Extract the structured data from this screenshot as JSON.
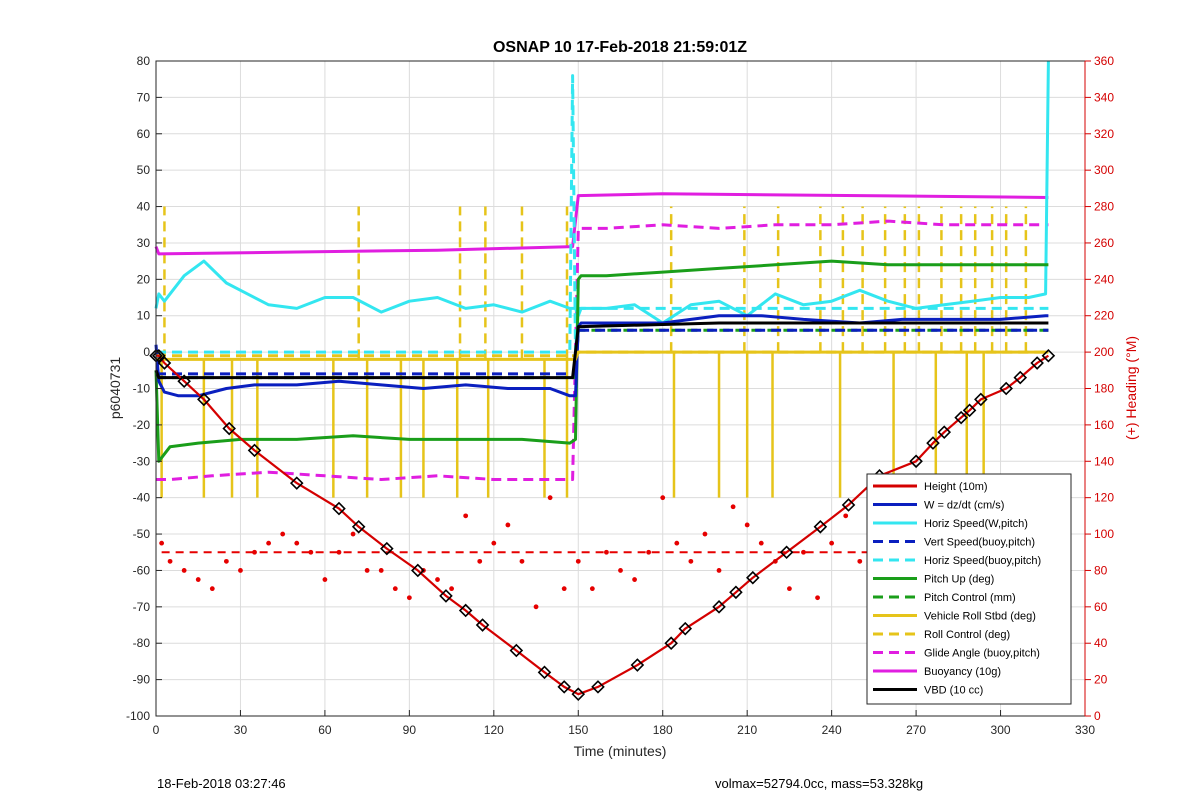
{
  "footer": {
    "left": "18-Feb-2018 03:27:46",
    "right": "volmax=52794.0cc, mass=53.328kg"
  },
  "chart_data": {
    "type": "line",
    "title": "OSNAP 10 17-Feb-2018 21:59:01Z",
    "xlabel": "Time (minutes)",
    "ylabel": "p6040731",
    "y2label": "(+) Heading (°M)",
    "xlim": [
      0,
      330
    ],
    "ylim": [
      -100,
      80
    ],
    "y2lim": [
      0,
      360
    ],
    "xticks": [
      0,
      30,
      60,
      90,
      120,
      150,
      180,
      210,
      240,
      270,
      300,
      330
    ],
    "yticks": [
      80,
      70,
      60,
      50,
      40,
      30,
      20,
      10,
      0,
      -10,
      -20,
      -30,
      -40,
      -50,
      -60,
      -70,
      -80,
      -90,
      -100
    ],
    "y2ticks": [
      360,
      340,
      320,
      300,
      280,
      260,
      240,
      220,
      200,
      180,
      160,
      140,
      120,
      100,
      80,
      60,
      40,
      20,
      0
    ],
    "grid": true,
    "legend_position": "bottom-right",
    "colors": {
      "height": "#d40000",
      "w": "#0a1fbf",
      "horiz": "#33e6f0",
      "pitch": "#1a9e1a",
      "roll": "#e6c41a",
      "glide": "#e01ee0",
      "buoy": "#e01ee0",
      "vbd": "#000000",
      "heading": "#e60000"
    },
    "series": [
      {
        "name": "Height (10m)",
        "key": "height",
        "style": "solid-markers",
        "x": [
          0,
          1,
          3,
          10,
          17,
          26,
          35,
          50,
          65,
          72,
          82,
          93,
          103,
          110,
          116,
          128,
          138,
          145,
          150,
          157,
          171,
          183,
          188,
          200,
          206,
          212,
          224,
          236,
          246,
          257,
          270,
          276,
          280,
          286,
          289,
          293,
          302,
          307,
          313,
          317
        ],
        "y": [
          -1,
          -1,
          -3,
          -8,
          -13,
          -21,
          -27,
          -36,
          -43,
          -48,
          -54,
          -60,
          -67,
          -71,
          -75,
          -82,
          -88,
          -92,
          -94,
          -92,
          -86,
          -80,
          -76,
          -70,
          -66,
          -62,
          -55,
          -48,
          -42,
          -34,
          -30,
          -25,
          -22,
          -18,
          -16,
          -13,
          -10,
          -7,
          -3,
          -1
        ]
      },
      {
        "name": "W = dz/dt (cm/s)",
        "key": "w",
        "style": "solid",
        "x": [
          0,
          1,
          3,
          8,
          15,
          25,
          35,
          50,
          65,
          80,
          95,
          110,
          125,
          140,
          147,
          149,
          150,
          151,
          160,
          180,
          200,
          215,
          230,
          250,
          265,
          280,
          300,
          316,
          317
        ],
        "y": [
          2,
          -8,
          -11,
          -12,
          -12,
          -10,
          -9,
          -9,
          -8,
          -9,
          -10,
          -9,
          -10,
          -10,
          -12,
          -12,
          7,
          8,
          8,
          8,
          10,
          10,
          9,
          8,
          9,
          9,
          9,
          10,
          10
        ]
      },
      {
        "name": "Horiz Speed(W,pitch)",
        "key": "horiz",
        "style": "solid",
        "x": [
          0,
          1,
          3,
          10,
          17,
          25,
          30,
          40,
          50,
          60,
          70,
          80,
          90,
          100,
          110,
          120,
          130,
          140,
          147,
          149,
          150,
          151,
          160,
          170,
          180,
          190,
          200,
          210,
          220,
          230,
          240,
          250,
          260,
          270,
          280,
          290,
          300,
          310,
          316,
          317
        ],
        "y": [
          12,
          16,
          14,
          21,
          25,
          19,
          17,
          13,
          12,
          15,
          15,
          11,
          14,
          15,
          12,
          13,
          11,
          14,
          12,
          12,
          10,
          12,
          12,
          13,
          8,
          13,
          14,
          10,
          16,
          13,
          14,
          17,
          14,
          12,
          13,
          14,
          15,
          15,
          16,
          80
        ]
      },
      {
        "name": "Vert Speed(buoy,pitch)",
        "key": "w",
        "style": "dashed",
        "x": [
          0,
          148,
          149,
          150,
          317
        ],
        "y": [
          -6,
          -6,
          -6,
          6,
          6
        ]
      },
      {
        "name": "Horiz Speed(buoy,pitch)",
        "key": "horiz",
        "style": "dashed",
        "x": [
          0,
          147,
          148,
          149,
          150,
          317
        ],
        "y": [
          0,
          0,
          76,
          0,
          12,
          12
        ]
      },
      {
        "name": "Pitch Up (deg)",
        "key": "pitch",
        "style": "solid",
        "x": [
          0,
          1,
          5,
          15,
          30,
          50,
          70,
          90,
          110,
          130,
          147,
          149,
          150,
          151,
          160,
          180,
          200,
          220,
          240,
          260,
          280,
          300,
          317
        ],
        "y": [
          -5,
          -30,
          -26,
          -25,
          -24,
          -24,
          -23,
          -24,
          -24,
          -24,
          -25,
          -24,
          20,
          21,
          21,
          22,
          23,
          24,
          25,
          24,
          24,
          24,
          24
        ]
      },
      {
        "name": "Pitch Control (mm)",
        "key": "pitch",
        "style": "dashed",
        "x": [
          0,
          148,
          149,
          150,
          317
        ],
        "y": [
          -7,
          -7,
          -7,
          6,
          6
        ]
      },
      {
        "name": "Vehicle Roll Stbd (deg)",
        "key": "roll",
        "style": "solid",
        "x": [
          0,
          149,
          150,
          317
        ],
        "y": [
          -2,
          -2,
          0,
          0
        ]
      },
      {
        "name": "Roll Control (deg)",
        "key": "roll",
        "style": "dashed",
        "x": [
          0,
          149,
          150,
          317
        ],
        "y": [
          -1,
          -1,
          0,
          0
        ]
      },
      {
        "name": "Glide Angle (buoy,pitch)",
        "key": "glide",
        "style": "dashed",
        "x": [
          0,
          5,
          20,
          40,
          60,
          80,
          100,
          120,
          140,
          148,
          150,
          160,
          180,
          200,
          220,
          240,
          260,
          280,
          300,
          317
        ],
        "y": [
          -35,
          -35,
          -34,
          -33,
          -34,
          -35,
          -34,
          -35,
          -35,
          -35,
          34,
          34,
          35,
          34,
          35,
          35,
          36,
          35,
          35,
          35
        ]
      },
      {
        "name": "Buoyancy (10g)",
        "key": "buoy",
        "style": "solid",
        "x": [
          0,
          1,
          50,
          100,
          148,
          150,
          180,
          250,
          317
        ],
        "y": [
          29,
          27,
          27.5,
          28,
          29,
          43,
          43.5,
          43,
          42.5
        ]
      },
      {
        "name": "VBD (10 cc)",
        "key": "vbd",
        "style": "solid",
        "x": [
          0,
          1,
          2,
          147,
          148,
          150,
          151,
          200,
          317
        ],
        "y": [
          -5,
          -7,
          -7,
          -7,
          -7,
          7,
          7,
          8,
          8
        ]
      }
    ],
    "roll_spikes": {
      "up": [
        3,
        72,
        108,
        117,
        130,
        146,
        183,
        209,
        221,
        236,
        244,
        251,
        259,
        266,
        271,
        279,
        286,
        291,
        297,
        302,
        309
      ],
      "down": [
        2,
        17,
        27,
        36,
        63,
        75,
        87,
        95,
        107,
        118,
        138,
        146,
        184,
        200,
        210,
        219,
        243,
        262,
        277,
        288,
        294
      ]
    },
    "heading": {
      "name": "Heading (°M)",
      "mean": 90,
      "x": [
        2,
        5,
        10,
        15,
        20,
        25,
        30,
        35,
        40,
        45,
        50,
        55,
        60,
        65,
        70,
        75,
        80,
        85,
        90,
        95,
        100,
        105,
        110,
        115,
        120,
        125,
        130,
        135,
        140,
        145,
        150,
        155,
        160,
        165,
        170,
        175,
        180,
        185,
        190,
        195,
        200,
        205,
        210,
        215,
        220,
        225,
        230,
        235,
        240,
        245,
        250,
        255,
        260,
        265,
        270,
        275,
        280,
        285,
        290,
        295,
        300,
        305,
        310,
        315
      ],
      "y": [
        95,
        85,
        80,
        75,
        70,
        85,
        80,
        90,
        95,
        100,
        95,
        90,
        75,
        90,
        100,
        80,
        80,
        70,
        65,
        80,
        75,
        70,
        110,
        85,
        95,
        105,
        85,
        60,
        120,
        70,
        85,
        70,
        90,
        80,
        75,
        90,
        120,
        95,
        85,
        100,
        80,
        115,
        105,
        95,
        85,
        70,
        90,
        65,
        95,
        110,
        85,
        75,
        95,
        80,
        85,
        90,
        80,
        70,
        85,
        95,
        90,
        80,
        85,
        90
      ]
    }
  }
}
